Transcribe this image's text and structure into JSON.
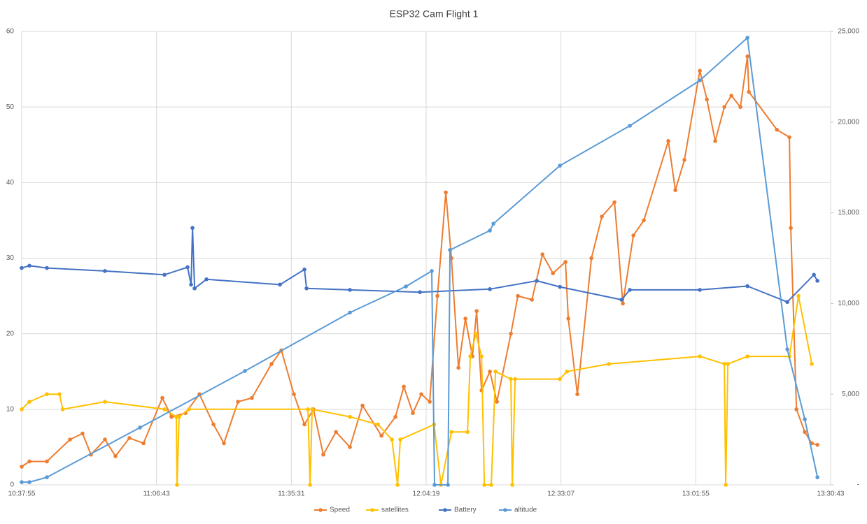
{
  "chart_data": {
    "type": "line",
    "title": "ESP32 Cam Flight 1",
    "xlim": [
      "10:37:55",
      "13:30:43"
    ],
    "xticks": [
      "10:37:55",
      "11:06:43",
      "11:35:31",
      "12:04:19",
      "12:33:07",
      "13:01:55",
      "13:30:43"
    ],
    "ylim": [
      0,
      60
    ],
    "yticks": [
      0,
      10,
      20,
      30,
      40,
      50,
      60
    ],
    "y2lim": [
      0,
      25000
    ],
    "y2ticks": [
      {
        "value": 0,
        "label": "-"
      },
      {
        "value": 5000,
        "label": "5,000"
      },
      {
        "value": 10000,
        "label": "10,000"
      },
      {
        "value": 15000,
        "label": "15,000"
      },
      {
        "value": 20000,
        "label": "20,000"
      },
      {
        "value": 25000,
        "label": "25,000"
      }
    ],
    "grid": true,
    "legend": "bottom",
    "series": [
      {
        "name": "Speed",
        "color": "#ED7D31",
        "x": [
          "10:37:55",
          "10:39:34",
          "10:43:18",
          "10:48:14",
          "10:50:55",
          "10:52:43",
          "10:55:42",
          "10:57:57",
          "11:00:56",
          "11:03:56",
          "11:07:58",
          "11:09:55",
          "11:12:54",
          "11:15:53",
          "11:18:53",
          "11:21:07",
          "11:24:07",
          "11:27:06",
          "11:31:17",
          "11:33:23",
          "11:36:04",
          "11:38:19",
          "11:40:15",
          "11:42:21",
          "11:45:03",
          "11:48:02",
          "11:50:43",
          "11:54:46",
          "11:57:45",
          "11:59:33",
          "12:01:29",
          "12:03:17",
          "12:05:05",
          "12:06:43",
          "12:08:31",
          "12:09:43",
          "12:11:13",
          "12:12:42",
          "12:14:12",
          "12:15:06",
          "12:16:09",
          "12:17:56",
          "12:19:26",
          "12:22:25",
          "12:23:55",
          "12:26:55",
          "12:29:10",
          "12:31:24",
          "12:34:05",
          "12:34:41",
          "12:36:37",
          "12:39:37",
          "12:41:51",
          "12:44:33",
          "12:46:20",
          "12:48:35",
          "12:50:49",
          "12:56:03",
          "12:57:33",
          "12:59:29",
          "13:02:47",
          "13:04:17",
          "13:06:04",
          "13:08:01",
          "13:09:31",
          "13:11:27",
          "13:12:57",
          "13:13:15",
          "13:19:14",
          "13:21:55",
          "13:22:13",
          "13:23:25",
          "13:25:12",
          "13:26:42",
          "13:27:54"
        ],
        "values": [
          2.4,
          3.1,
          3.1,
          6.0,
          6.8,
          4.0,
          6.0,
          3.8,
          6.2,
          5.5,
          11.5,
          9.0,
          9.5,
          12,
          8,
          5.5,
          11,
          11.5,
          16,
          17.8,
          12,
          8,
          10,
          4,
          7,
          5,
          10.5,
          6.5,
          9,
          13,
          9.5,
          12,
          11,
          25,
          38.7,
          30,
          15.5,
          22,
          17,
          23,
          12.5,
          15,
          11,
          20,
          25,
          24.5,
          30.5,
          28,
          29.5,
          22,
          12,
          30,
          35.5,
          37.4,
          24,
          33,
          35,
          45.5,
          39,
          43,
          54.8,
          51,
          45.5,
          50,
          51.5,
          50,
          56.7,
          52,
          47,
          46,
          34,
          10,
          7,
          5.5,
          5.3
        ]
      },
      {
        "name": "satellites",
        "color": "#FFC000",
        "x": [
          "10:37:55",
          "10:39:34",
          "10:43:18",
          "10:45:59",
          "10:46:41",
          "10:55:42",
          "11:08:25",
          "11:10:57",
          "11:11:06",
          "11:11:33",
          "11:13:39",
          "11:39:04",
          "11:39:31",
          "11:39:58",
          "11:48:02",
          "11:54:01",
          "11:57:00",
          "11:58:12",
          "11:58:48",
          "12:06:01",
          "12:07:28",
          "12:09:43",
          "12:13:09",
          "12:13:45",
          "12:14:57",
          "12:16:09",
          "12:16:45",
          "12:18:14",
          "12:19:08",
          "12:22:25",
          "12:22:43",
          "12:23:19",
          "12:32:53",
          "12:34:23",
          "12:43:21",
          "13:02:47",
          "13:08:01",
          "13:08:19",
          "13:08:46",
          "13:12:57",
          "13:21:55",
          "13:23:51",
          "13:26:42"
        ],
        "values": [
          10,
          11,
          12,
          12,
          10,
          11,
          10,
          9,
          0,
          9,
          10,
          10,
          0,
          10,
          9,
          8,
          6,
          0,
          6,
          8,
          0,
          7,
          7,
          17,
          20,
          17,
          0,
          0,
          15,
          14,
          0,
          14,
          14,
          15,
          16,
          17,
          16,
          0,
          16,
          17,
          17,
          25,
          16
        ]
      },
      {
        "name": "Battery",
        "color": "#4472C4",
        "x": [
          "10:37:55",
          "10:39:34",
          "10:43:18",
          "10:55:42",
          "11:08:25",
          "11:13:21",
          "11:14:06",
          "11:14:24",
          "11:14:51",
          "11:17:23",
          "11:33:05",
          "11:38:19",
          "11:38:46",
          "11:48:02",
          "12:02:59",
          "12:17:56",
          "12:27:57",
          "12:32:53",
          "12:46:02",
          "12:47:50",
          "13:02:47",
          "13:12:57",
          "13:21:28",
          "13:27:09",
          "13:27:54"
        ],
        "values": [
          28.7,
          29,
          28.7,
          28.3,
          27.8,
          28.8,
          26.5,
          34,
          26,
          27.2,
          26.5,
          28.5,
          26,
          25.8,
          25.5,
          25.9,
          27,
          26.2,
          24.5,
          25.8,
          25.8,
          26.3,
          24.2,
          27.8,
          27
        ]
      },
      {
        "name": "altitude",
        "color": "#5B9BD5",
        "axis": "y2",
        "x": [
          "10:37:55",
          "10:39:34",
          "10:43:18",
          "11:03:11",
          "11:25:36",
          "11:48:02",
          "12:00:00",
          "12:05:31",
          "12:06:07",
          "12:08:58",
          "12:09:25",
          "12:17:56",
          "12:18:41",
          "12:32:53",
          "12:47:50",
          "13:02:47",
          "13:12:57",
          "13:21:28",
          "13:25:12",
          "13:27:54"
        ],
        "values": [
          150,
          150,
          420,
          3160,
          6280,
          9500,
          10940,
          11790,
          0,
          0,
          12950,
          14020,
          14400,
          17600,
          19800,
          22300,
          24650,
          7470,
          3620,
          420
        ]
      }
    ]
  }
}
